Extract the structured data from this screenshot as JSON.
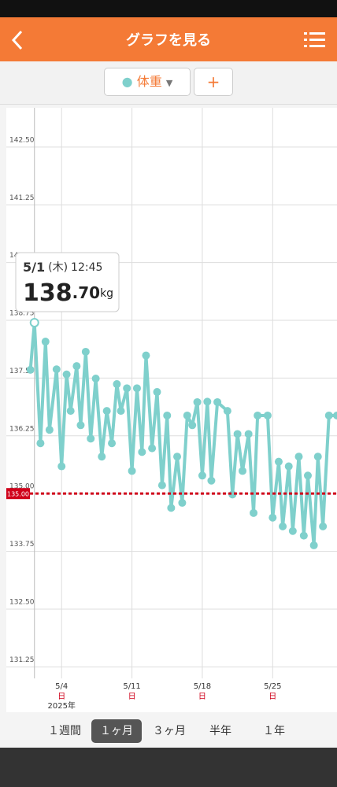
{
  "header": {
    "title": "グラフを見る"
  },
  "selector": {
    "item": "体重",
    "add": "+"
  },
  "chart_data": {
    "type": "line",
    "color": "#7fd0cc",
    "x": [
      0.9,
      1.3,
      1.9,
      2.4,
      2.8,
      3.5,
      4.0,
      4.5,
      4.9,
      5.5,
      5.9,
      6.4,
      6.9,
      7.4,
      8.0,
      8.5,
      9.0,
      9.5,
      9.9,
      10.5,
      11.0,
      11.5,
      12.0,
      12.4,
      13.0,
      13.5,
      14.0,
      14.5,
      14.9,
      15.5,
      16.0,
      16.5,
      17.0,
      17.5,
      18.0,
      18.5,
      18.9,
      19.5,
      20.5,
      21.0,
      21.5,
      22.0,
      22.6,
      23.1,
      23.5,
      24.5,
      25.0,
      25.6,
      26.0,
      26.6,
      27.0,
      27.6,
      28.1,
      28.5,
      29.1,
      29.5,
      30.0,
      30.6,
      31.4
    ],
    "series": [
      {
        "name": "体重",
        "color": "#7fd0cc",
        "values": [
          137.68,
          138.7,
          136.09,
          138.29,
          136.38,
          137.69,
          135.59,
          137.58,
          136.79,
          137.76,
          136.48,
          138.07,
          136.19,
          137.49,
          135.8,
          136.79,
          136.09,
          137.37,
          136.79,
          137.28,
          135.49,
          137.28,
          135.9,
          137.99,
          135.98,
          137.2,
          135.18,
          136.69,
          134.69,
          135.8,
          134.8,
          136.69,
          136.48,
          136.98,
          135.39,
          136.99,
          135.28,
          136.98,
          136.79,
          134.98,
          136.29,
          135.49,
          136.29,
          134.58,
          136.69,
          136.69,
          134.48,
          135.69,
          134.29,
          135.59,
          134.19,
          135.8,
          134.09,
          135.39,
          133.88,
          135.8,
          134.29,
          136.69,
          136.69
        ]
      }
    ],
    "xlim": [
      -1.5,
      31.4
    ],
    "xticks": [
      {
        "value": 4,
        "label": "5/4"
      },
      {
        "value": 11,
        "label": "5/11"
      },
      {
        "value": 18,
        "label": "5/18"
      },
      {
        "value": 25,
        "label": "5/25"
      }
    ],
    "xtick_sublabels": [
      "日",
      "日",
      "日",
      "日"
    ],
    "year_label": "2025年",
    "ylim": [
      131.0,
      143.35
    ],
    "yticks": [
      {
        "value": 131.25,
        "label": "131.25"
      },
      {
        "value": 132.5,
        "label": "132.50"
      },
      {
        "value": 133.75,
        "label": "133.75"
      },
      {
        "value": 135,
        "label": "135.00"
      },
      {
        "value": 136.25,
        "label": "136.25"
      },
      {
        "value": 137.5,
        "label": "137.50"
      },
      {
        "value": 138.75,
        "label": "138.75"
      },
      {
        "value": 140,
        "label": "140.00"
      },
      {
        "value": 141.25,
        "label": "141.25"
      },
      {
        "value": 142.5,
        "label": "142.50"
      }
    ],
    "target": {
      "value": 135,
      "label": "135.00",
      "color": "#d0021b"
    },
    "grid": true,
    "selected_point": 1,
    "tooltip": {
      "date": "5/1",
      "weekday": "(木)",
      "time": "12:45",
      "value_int": "138",
      "value_dec": ".70",
      "unit": "kg"
    }
  },
  "tabs": {
    "items": [
      "１週間",
      "１ヶ月",
      "３ヶ月",
      "半年",
      "１年"
    ],
    "selected": 1
  }
}
